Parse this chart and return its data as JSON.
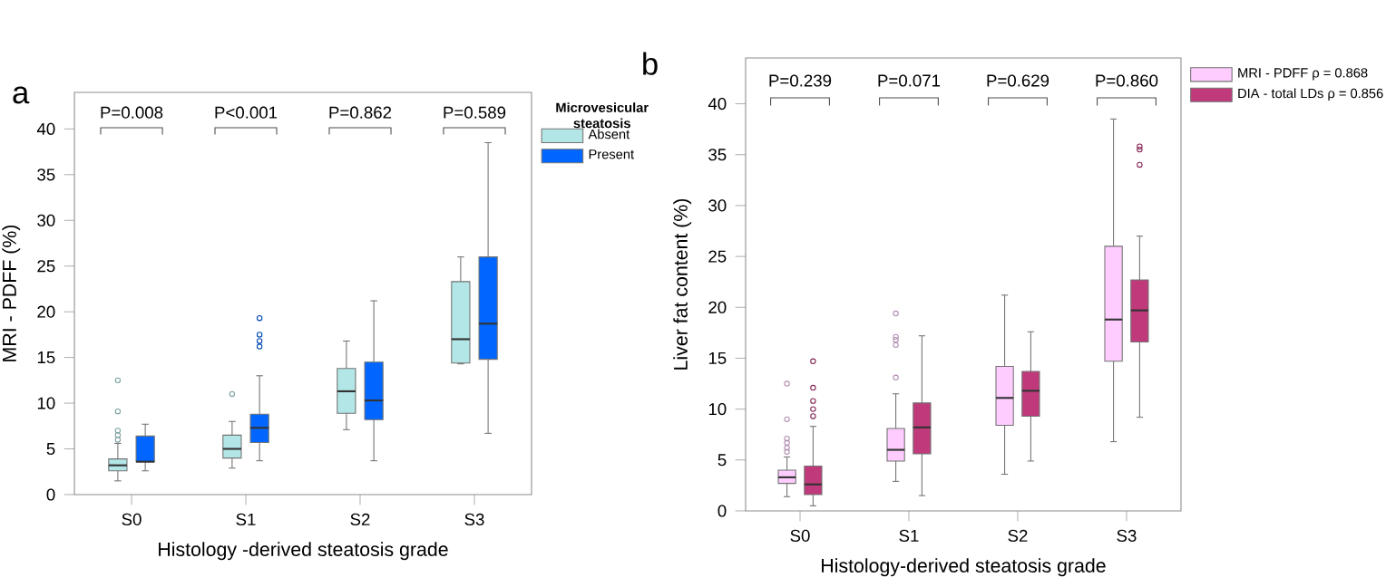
{
  "chart_data": [
    {
      "type": "box",
      "title": "a",
      "xlabel": "Histology -derived steatosis grade",
      "ylabel": "MRI  - PDFF (%)",
      "categories": [
        "S0",
        "S1",
        "S2",
        "S3"
      ],
      "ylim": [
        0,
        44
      ],
      "yticks": [
        0,
        5,
        10,
        15,
        20,
        25,
        30,
        35,
        40
      ],
      "legend": "top right",
      "legend_title": "Microvesicular steatosis",
      "series": [
        {
          "name": "Absent",
          "color": "#b3e6e6",
          "boxes": [
            {
              "low": 1.5,
              "q1": 2.6,
              "median": 3.2,
              "q3": 3.9,
              "high": 5.6,
              "outliers": [
                6.0,
                6.5,
                7.0,
                9.1,
                12.5
              ]
            },
            {
              "low": 2.9,
              "q1": 4.0,
              "median": 5.0,
              "q3": 6.5,
              "high": 8.0,
              "outliers": [
                11.0
              ]
            },
            {
              "low": 7.1,
              "q1": 8.9,
              "median": 11.3,
              "q3": 13.8,
              "high": 16.8
            },
            {
              "low": 14.3,
              "q1": 14.4,
              "median": 17.0,
              "q3": 23.3,
              "high": 26.0
            }
          ]
        },
        {
          "name": "Present",
          "color": "#0066ff",
          "boxes": [
            {
              "low": 2.6,
              "q1": 3.6,
              "median": 3.6,
              "q3": 6.4,
              "high": 7.7
            },
            {
              "low": 3.7,
              "q1": 5.7,
              "median": 7.3,
              "q3": 8.8,
              "high": 13.0,
              "outliers": [
                16.2,
                16.8,
                17.5,
                19.3
              ]
            },
            {
              "low": 3.7,
              "q1": 8.2,
              "median": 10.3,
              "q3": 14.5,
              "high": 21.2
            },
            {
              "low": 6.7,
              "q1": 14.8,
              "median": 18.7,
              "q3": 26.0,
              "high": 38.5
            }
          ]
        }
      ],
      "annotations": [
        "P=0.008",
        "P<0.001",
        "P=0.862",
        "P=0.589"
      ]
    },
    {
      "type": "box",
      "title": "b",
      "xlabel": "Histology-derived steatosis grade",
      "ylabel": "Liver fat content (%)",
      "categories": [
        "S0",
        "S1",
        "S2",
        "S3"
      ],
      "ylim": [
        0,
        44.5
      ],
      "yticks": [
        0,
        5,
        10,
        15,
        20,
        25,
        30,
        35,
        40
      ],
      "legend": "top right",
      "series": [
        {
          "name": "MRI - PDFF   ρ = 0.868",
          "color": "#ffccff",
          "boxes": [
            {
              "low": 1.4,
              "q1": 2.7,
              "median": 3.3,
              "q3": 4.0,
              "high": 5.3,
              "outliers": [
                5.8,
                6.2,
                6.7,
                7.1,
                9.0,
                12.5
              ]
            },
            {
              "low": 2.9,
              "q1": 4.9,
              "median": 6.0,
              "q3": 8.1,
              "high": 11.5,
              "outliers": [
                13.1,
                16.3,
                16.8,
                17.1,
                19.4
              ]
            },
            {
              "low": 3.6,
              "q1": 8.4,
              "median": 11.1,
              "q3": 14.2,
              "high": 21.2
            },
            {
              "low": 6.8,
              "q1": 14.7,
              "median": 18.8,
              "q3": 26.0,
              "high": 38.5
            }
          ]
        },
        {
          "name": "DIA - total LDs ρ = 0.856",
          "color": "#c0397a",
          "boxes": [
            {
              "low": 0.5,
              "q1": 1.6,
              "median": 2.6,
              "q3": 4.4,
              "high": 8.3,
              "outliers": [
                9.3,
                10.0,
                10.8,
                12.1,
                14.7
              ]
            },
            {
              "low": 1.5,
              "q1": 5.6,
              "median": 8.2,
              "q3": 10.6,
              "high": 17.2
            },
            {
              "low": 4.9,
              "q1": 9.3,
              "median": 11.8,
              "q3": 13.7,
              "high": 17.6
            },
            {
              "low": 9.2,
              "q1": 16.6,
              "median": 19.7,
              "q3": 22.7,
              "high": 27.0,
              "outliers": [
                34.0,
                35.5,
                35.8
              ]
            }
          ]
        }
      ],
      "annotations": [
        "P=0.239",
        "P=0.071",
        "P=0.629",
        "P=0.860"
      ]
    }
  ]
}
